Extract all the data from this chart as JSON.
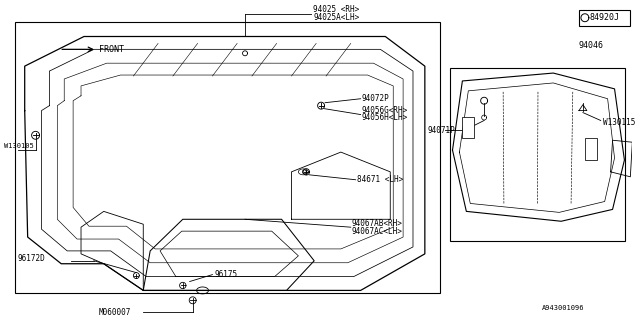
{
  "bg_color": "#ffffff",
  "line_color": "#000000",
  "fig_width": 6.4,
  "fig_height": 3.2,
  "dpi": 100,
  "part_labels": {
    "94025_rh": "94025 <RH>",
    "94025a_lh": "94025A<LH>",
    "94072p": "94072P",
    "94056g_rh": "94056G<RH>",
    "94056h_lh": "94056H<LH>",
    "84671_lh": "84671 <LH>",
    "94067ab_rh": "94067AB<RH>",
    "94067ac_lh": "94067AC<LH>",
    "96172d": "96172D",
    "96175": "96175",
    "m060007": "M060007",
    "w130105": "W130105",
    "94046": "94046",
    "94071p": "94071P",
    "w130115": "W130115",
    "84920": "84920J",
    "front": "FRONT",
    "diagram_id": "A943001096"
  },
  "small_font": 5.5,
  "medium_font": 7.0
}
